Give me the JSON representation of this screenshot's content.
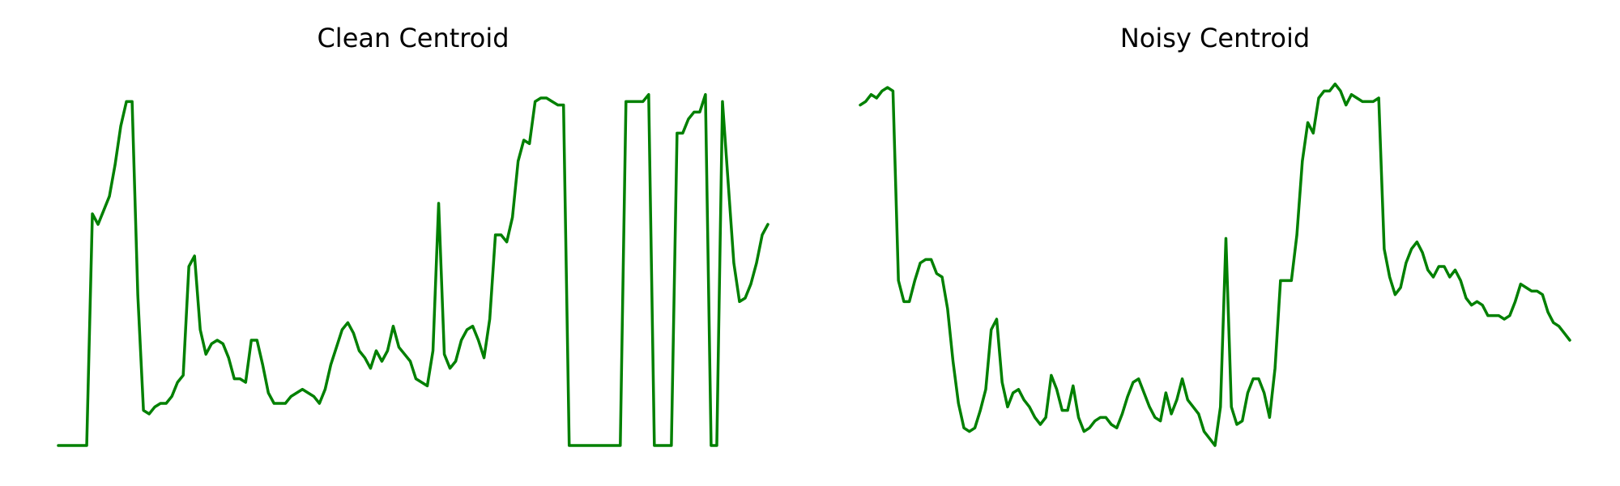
{
  "colors": {
    "line": "#008000",
    "background": "#ffffff"
  },
  "chart_data": [
    {
      "type": "line",
      "title": "Clean Centroid",
      "xlabel": "",
      "ylabel": "",
      "axes": "off",
      "grid": false,
      "xlim": [
        -1,
        83
      ],
      "ylim": [
        0,
        1.05
      ],
      "series": [
        {
          "values": [
            0,
            0,
            0,
            0,
            0,
            0,
            0.66,
            0.63,
            0.67,
            0.71,
            0.8,
            0.91,
            0.98,
            0.98,
            0.43,
            0.1,
            0.09,
            0.11,
            0.12,
            0.12,
            0.14,
            0.18,
            0.2,
            0.51,
            0.54,
            0.33,
            0.26,
            0.29,
            0.3,
            0.29,
            0.25,
            0.19,
            0.19,
            0.18,
            0.3,
            0.3,
            0.23,
            0.15,
            0.12,
            0.12,
            0.12,
            0.14,
            0.15,
            0.16,
            0.15,
            0.14,
            0.12,
            0.16,
            0.23,
            0.28,
            0.33,
            0.35,
            0.32,
            0.27,
            0.25,
            0.22,
            0.27,
            0.24,
            0.27,
            0.34,
            0.28,
            0.26,
            0.24,
            0.19,
            0.18,
            0.17,
            0.27,
            0.69,
            0.26,
            0.22,
            0.24,
            0.3,
            0.33,
            0.34,
            0.3,
            0.25,
            0.36,
            0.6,
            0.6,
            0.58,
            0.65,
            0.81,
            0.87,
            0.86,
            0.98,
            0.99,
            0.99,
            0.98,
            0.97,
            0.97,
            0,
            0,
            0,
            0,
            0,
            0,
            0,
            0,
            0,
            0,
            0.98,
            0.98,
            0.98,
            0.98,
            1.0,
            0,
            0,
            0,
            0,
            0.89,
            0.89,
            0.93,
            0.95,
            0.95,
            1.0,
            0,
            0,
            0.98,
            0.75,
            0.52,
            0.41,
            0.42,
            0.46,
            0.52,
            0.6,
            0.63
          ]
        }
      ]
    },
    {
      "type": "line",
      "title": "Noisy Centroid",
      "xlabel": "",
      "ylabel": "",
      "axes": "off",
      "grid": false,
      "xlim": [
        -1,
        83
      ],
      "ylim": [
        0,
        1.05
      ],
      "series": [
        {
          "values": [
            0.97,
            0.98,
            1.0,
            0.99,
            1.01,
            1.02,
            1.01,
            0.47,
            0.41,
            0.41,
            0.47,
            0.52,
            0.53,
            0.53,
            0.49,
            0.48,
            0.39,
            0.24,
            0.12,
            0.05,
            0.04,
            0.05,
            0.1,
            0.16,
            0.33,
            0.36,
            0.18,
            0.11,
            0.15,
            0.16,
            0.13,
            0.11,
            0.08,
            0.06,
            0.08,
            0.2,
            0.16,
            0.1,
            0.1,
            0.17,
            0.08,
            0.04,
            0.05,
            0.07,
            0.08,
            0.08,
            0.06,
            0.05,
            0.09,
            0.14,
            0.18,
            0.19,
            0.15,
            0.11,
            0.08,
            0.07,
            0.15,
            0.09,
            0.13,
            0.19,
            0.13,
            0.11,
            0.09,
            0.04,
            0.02,
            0.0,
            0.11,
            0.59,
            0.11,
            0.06,
            0.07,
            0.15,
            0.19,
            0.19,
            0.15,
            0.08,
            0.22,
            0.47,
            0.47,
            0.47,
            0.6,
            0.81,
            0.92,
            0.89,
            0.99,
            1.01,
            1.01,
            1.03,
            1.01,
            0.97,
            1.0,
            0.99,
            0.98,
            0.98,
            0.98,
            0.99,
            0.56,
            0.48,
            0.43,
            0.45,
            0.52,
            0.56,
            0.58,
            0.55,
            0.5,
            0.48,
            0.51,
            0.51,
            0.48,
            0.5,
            0.47,
            0.42,
            0.4,
            0.41,
            0.4,
            0.37,
            0.37,
            0.37,
            0.36,
            0.37,
            0.41,
            0.46,
            0.45,
            0.44,
            0.44,
            0.43,
            0.38,
            0.35,
            0.34,
            0.32,
            0.3
          ]
        }
      ]
    }
  ]
}
